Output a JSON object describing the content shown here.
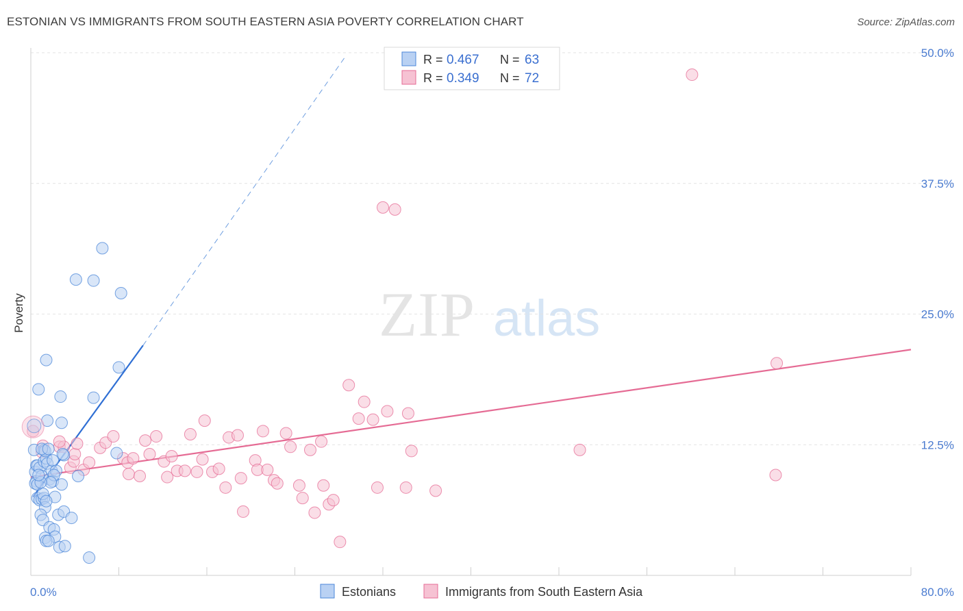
{
  "title": "ESTONIAN VS IMMIGRANTS FROM SOUTH EASTERN ASIA POVERTY CORRELATION CHART",
  "source": "Source: ZipAtlas.com",
  "watermark": {
    "zip": "ZIP",
    "atlas": "atlas"
  },
  "colors": {
    "blue": "#4a86d8",
    "blue_fill": "#b9d1f3",
    "pink": "#e56b94",
    "pink_fill": "#f6c2d3",
    "grid": "#e3e3e3",
    "tick_text": "#4a7bd0"
  },
  "chart_data": {
    "type": "scatter",
    "title": "ESTONIAN VS IMMIGRANTS FROM SOUTH EASTERN ASIA POVERTY CORRELATION CHART",
    "xlabel": "",
    "ylabel": "Poverty",
    "xlim": [
      0,
      80
    ],
    "ylim": [
      0,
      50
    ],
    "x_tick_labels": [
      "0.0%",
      "80.0%"
    ],
    "y_ticks": [
      12.5,
      25.0,
      37.5,
      50.0
    ],
    "y_tick_labels": [
      "12.5%",
      "25.0%",
      "37.5%",
      "50.0%"
    ],
    "legend": [
      {
        "name": "Estonians",
        "r_label": "R = ",
        "r": "0.467",
        "n_label": "N = ",
        "n": "63"
      },
      {
        "name": "Immigrants from South Eastern Asia",
        "r_label": "R = ",
        "r": "0.349",
        "n_label": "N = ",
        "n": "72"
      }
    ],
    "series": [
      {
        "name": "Estonians",
        "trend": {
          "x0": 0.2,
          "y0": 7.5,
          "x1": 10.2,
          "y1": 22.0,
          "dash_x1": 28.5,
          "dash_y1": 49.5
        },
        "points": [
          [
            0.3,
            12.0
          ],
          [
            0.5,
            10.5
          ],
          [
            0.4,
            9.9
          ],
          [
            0.6,
            10.5
          ],
          [
            0.5,
            9.0
          ],
          [
            0.8,
            10.3
          ],
          [
            0.4,
            8.8
          ],
          [
            0.6,
            7.4
          ],
          [
            0.8,
            7.2
          ],
          [
            1.0,
            7.3
          ],
          [
            1.2,
            7.4
          ],
          [
            1.0,
            9.5
          ],
          [
            1.2,
            10.9
          ],
          [
            1.4,
            11.2
          ],
          [
            1.5,
            10.7
          ],
          [
            1.7,
            9.2
          ],
          [
            1.9,
            10.0
          ],
          [
            2.0,
            9.0
          ],
          [
            2.2,
            7.5
          ],
          [
            1.3,
            6.5
          ],
          [
            0.9,
            5.8
          ],
          [
            1.1,
            5.3
          ],
          [
            2.5,
            5.8
          ],
          [
            3.0,
            6.1
          ],
          [
            3.7,
            5.5
          ],
          [
            1.7,
            4.6
          ],
          [
            2.1,
            4.4
          ],
          [
            2.2,
            3.7
          ],
          [
            1.3,
            3.6
          ],
          [
            1.4,
            3.3
          ],
          [
            1.6,
            3.3
          ],
          [
            2.6,
            2.7
          ],
          [
            3.1,
            2.8
          ],
          [
            5.3,
            1.7
          ],
          [
            0.7,
            17.8
          ],
          [
            1.4,
            20.6
          ],
          [
            2.7,
            17.1
          ],
          [
            2.8,
            14.6
          ],
          [
            1.5,
            14.8
          ],
          [
            1.2,
            12.0
          ],
          [
            1.3,
            11.9
          ],
          [
            2.0,
            11.0
          ],
          [
            2.3,
            10.0
          ],
          [
            2.1,
            9.6
          ],
          [
            2.8,
            8.7
          ],
          [
            3.0,
            11.5
          ],
          [
            4.3,
            9.5
          ],
          [
            4.1,
            28.3
          ],
          [
            5.7,
            28.2
          ],
          [
            6.5,
            31.3
          ],
          [
            8.2,
            27.0
          ],
          [
            8.0,
            19.9
          ],
          [
            5.7,
            17.0
          ],
          [
            7.8,
            11.7
          ],
          [
            1.1,
            7.8
          ],
          [
            0.6,
            8.7
          ],
          [
            1.8,
            8.9
          ],
          [
            1.0,
            12.1
          ],
          [
            1.6,
            12.1
          ],
          [
            0.9,
            8.9
          ],
          [
            2.9,
            11.6
          ],
          [
            0.7,
            9.6
          ],
          [
            1.4,
            7.1
          ]
        ]
      },
      {
        "name": "Immigrants from South Eastern Asia",
        "trend": {
          "x0": 0.0,
          "y0": 9.4,
          "x1": 80.0,
          "y1": 21.6
        },
        "points": [
          [
            0.2,
            13.8
          ],
          [
            1.1,
            12.4
          ],
          [
            2.6,
            12.3
          ],
          [
            3.6,
            10.3
          ],
          [
            3.9,
            10.9
          ],
          [
            3.0,
            12.3
          ],
          [
            4.0,
            11.6
          ],
          [
            4.8,
            10.1
          ],
          [
            5.3,
            10.8
          ],
          [
            6.3,
            12.2
          ],
          [
            6.8,
            12.7
          ],
          [
            7.5,
            13.3
          ],
          [
            8.4,
            11.2
          ],
          [
            8.8,
            10.8
          ],
          [
            8.9,
            9.7
          ],
          [
            9.3,
            11.2
          ],
          [
            9.9,
            9.5
          ],
          [
            10.4,
            12.9
          ],
          [
            10.8,
            11.6
          ],
          [
            11.4,
            13.3
          ],
          [
            12.1,
            10.9
          ],
          [
            12.4,
            9.4
          ],
          [
            12.8,
            11.4
          ],
          [
            13.3,
            10.0
          ],
          [
            14.0,
            10.0
          ],
          [
            14.5,
            13.5
          ],
          [
            15.1,
            9.9
          ],
          [
            15.6,
            11.1
          ],
          [
            15.8,
            14.8
          ],
          [
            16.5,
            9.9
          ],
          [
            17.1,
            10.2
          ],
          [
            17.7,
            8.4
          ],
          [
            18.0,
            13.2
          ],
          [
            18.8,
            13.4
          ],
          [
            19.1,
            9.3
          ],
          [
            19.3,
            6.1
          ],
          [
            20.4,
            11.0
          ],
          [
            20.6,
            10.1
          ],
          [
            21.1,
            13.8
          ],
          [
            21.5,
            10.1
          ],
          [
            22.1,
            9.1
          ],
          [
            22.4,
            8.8
          ],
          [
            23.2,
            13.6
          ],
          [
            23.6,
            12.3
          ],
          [
            24.4,
            8.6
          ],
          [
            24.7,
            7.4
          ],
          [
            25.4,
            12.0
          ],
          [
            25.8,
            6.0
          ],
          [
            26.4,
            12.8
          ],
          [
            26.6,
            8.6
          ],
          [
            27.1,
            6.8
          ],
          [
            27.5,
            7.2
          ],
          [
            28.1,
            3.2
          ],
          [
            28.9,
            18.2
          ],
          [
            29.8,
            15.0
          ],
          [
            30.3,
            16.6
          ],
          [
            31.1,
            14.9
          ],
          [
            31.5,
            8.4
          ],
          [
            32.0,
            35.2
          ],
          [
            32.4,
            15.7
          ],
          [
            33.1,
            35.0
          ],
          [
            34.3,
            15.5
          ],
          [
            34.6,
            11.9
          ],
          [
            34.1,
            8.4
          ],
          [
            36.8,
            8.1
          ],
          [
            49.9,
            12.0
          ],
          [
            60.1,
            47.9
          ],
          [
            67.7,
            9.6
          ],
          [
            67.8,
            20.3
          ],
          [
            2.6,
            12.8
          ],
          [
            1.0,
            11.8
          ],
          [
            4.2,
            12.6
          ]
        ]
      }
    ]
  }
}
